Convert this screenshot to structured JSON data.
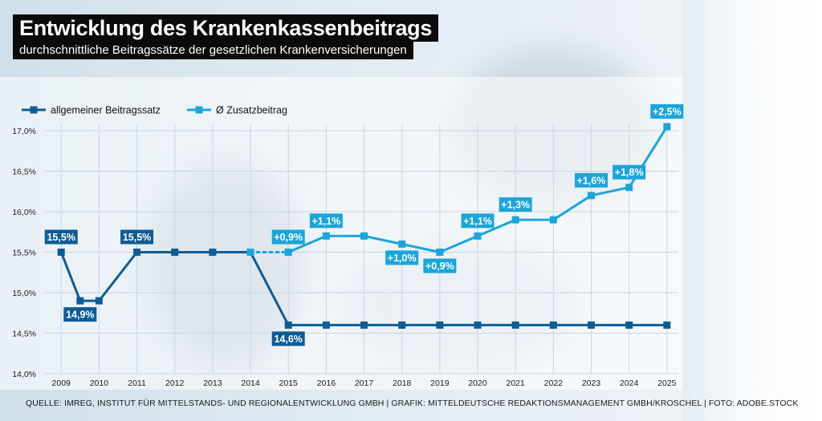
{
  "header": {
    "title": "Entwicklung des Krankenkassenbeitrags",
    "subtitle": "durchschnittliche Beitragssätze der gesetzlichen Krankenversicherungen"
  },
  "footer": {
    "source": "QUELLE: IMREG, INSTITUT FÜR MITTELSTANDS- UND REGIONALENTWICKLUNG GMBH | GRAFIK: MITTELDEUTSCHE REDAKTIONSMANAGEMENT GMBH/KROSCHEL | FOTO: ADOBE.STOCK"
  },
  "colors": {
    "dark_series": "#0d5c96",
    "light_series": "#1aa5db",
    "grid": "#c9d6de",
    "axis_text": "#1b1b1b"
  },
  "chart_data": {
    "type": "line",
    "x_ticks": [
      "2009",
      "2010",
      "2011",
      "2012",
      "2013",
      "2014",
      "2015",
      "2016",
      "2017",
      "2018",
      "2019",
      "2020",
      "2021",
      "2022",
      "2023",
      "2024",
      "2025"
    ],
    "y_ticks": [
      "14,0%",
      "14,5%",
      "15,0%",
      "15,5%",
      "16,0%",
      "16,5%",
      "17,0%"
    ],
    "ylim": [
      14.0,
      17.0
    ],
    "xlim": [
      2008.55,
      2025.3
    ],
    "grid": true,
    "legend_position": "top-left",
    "series": [
      {
        "name": "allgemeiner Beitragssatz",
        "color": "#0d5c96",
        "points": [
          {
            "x": 2009.0,
            "y": 15.5
          },
          {
            "x": 2009.5,
            "y": 14.9
          },
          {
            "x": 2010.0,
            "y": 14.9
          },
          {
            "x": 2011.0,
            "y": 15.5
          },
          {
            "x": 2012.0,
            "y": 15.5
          },
          {
            "x": 2013.0,
            "y": 15.5
          },
          {
            "x": 2014.0,
            "y": 15.5
          },
          {
            "x": 2015.0,
            "y": 14.6
          },
          {
            "x": 2016.0,
            "y": 14.6
          },
          {
            "x": 2017.0,
            "y": 14.6
          },
          {
            "x": 2018.0,
            "y": 14.6
          },
          {
            "x": 2019.0,
            "y": 14.6
          },
          {
            "x": 2020.0,
            "y": 14.6
          },
          {
            "x": 2021.0,
            "y": 14.6
          },
          {
            "x": 2022.0,
            "y": 14.6
          },
          {
            "x": 2023.0,
            "y": 14.6
          },
          {
            "x": 2024.0,
            "y": 14.6
          },
          {
            "x": 2025.0,
            "y": 14.6
          }
        ]
      },
      {
        "name": "Ø Zusatzbeitrag",
        "color": "#1aa5db",
        "points": [
          {
            "x": 2015.0,
            "y": 15.5
          },
          {
            "x": 2016.0,
            "y": 15.7
          },
          {
            "x": 2017.0,
            "y": 15.7
          },
          {
            "x": 2018.0,
            "y": 15.6
          },
          {
            "x": 2019.0,
            "y": 15.5
          },
          {
            "x": 2020.0,
            "y": 15.7
          },
          {
            "x": 2021.0,
            "y": 15.9
          },
          {
            "x": 2022.0,
            "y": 15.9
          },
          {
            "x": 2023.0,
            "y": 16.2
          },
          {
            "x": 2024.0,
            "y": 16.3
          },
          {
            "x": 2025.0,
            "y": 17.05
          }
        ]
      }
    ],
    "annotations": [
      {
        "text": "15,5%",
        "series": 0,
        "point": 0,
        "place": "above"
      },
      {
        "text": "14,9%",
        "series": 0,
        "point": 1,
        "place": "below"
      },
      {
        "text": "15,5%",
        "series": 0,
        "point": 3,
        "place": "above"
      },
      {
        "text": "14,6%",
        "series": 0,
        "point": 7,
        "place": "below"
      },
      {
        "text": "+0,9%",
        "series": 1,
        "point": 0,
        "place": "above"
      },
      {
        "text": "+1,1%",
        "series": 1,
        "point": 1,
        "place": "above"
      },
      {
        "text": "+1,0%",
        "series": 1,
        "point": 3,
        "place": "below"
      },
      {
        "text": "+0,9%",
        "series": 1,
        "point": 4,
        "place": "below"
      },
      {
        "text": "+1,1%",
        "series": 1,
        "point": 5,
        "place": "above"
      },
      {
        "text": "+1,3%",
        "series": 1,
        "point": 6,
        "place": "above"
      },
      {
        "text": "+1,6%",
        "series": 1,
        "point": 8,
        "place": "above"
      },
      {
        "text": "+1,8%",
        "series": 1,
        "point": 9,
        "place": "above"
      },
      {
        "text": "+2,5%",
        "series": 1,
        "point": 10,
        "place": "above"
      }
    ]
  }
}
